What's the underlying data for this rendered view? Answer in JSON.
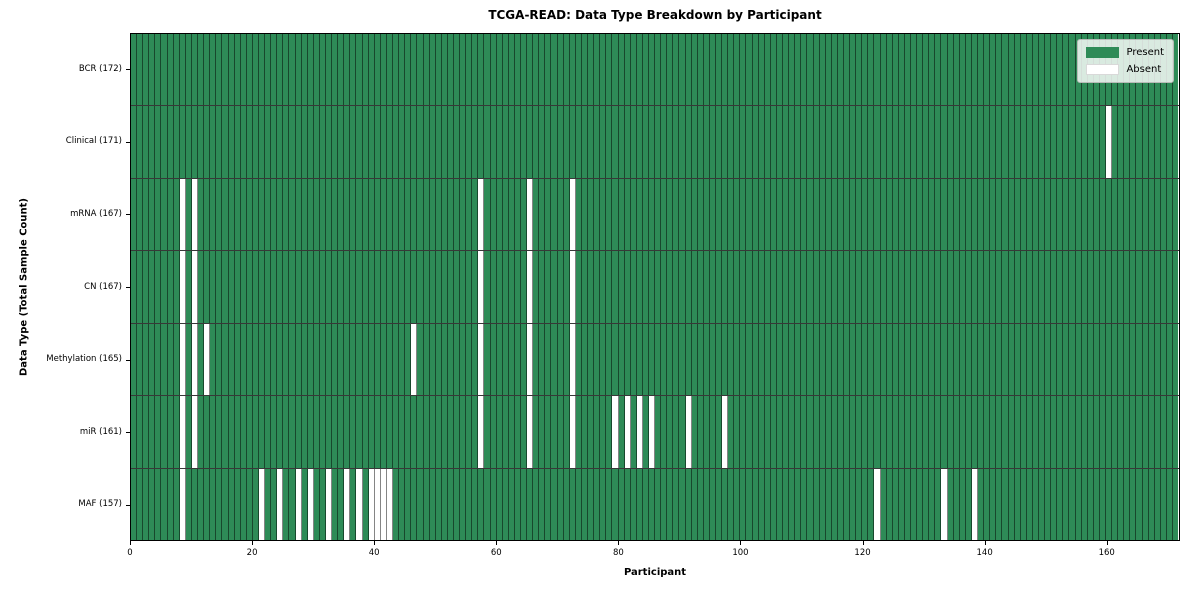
{
  "chart_data": {
    "type": "heatmap",
    "title": "TCGA-READ: Data Type Breakdown by Participant",
    "xlabel": "Participant",
    "ylabel": "Data Type (Total Sample Count)",
    "x_range": [
      0,
      172
    ],
    "n_participants": 172,
    "x_ticks": [
      0,
      20,
      40,
      60,
      80,
      100,
      120,
      140,
      160
    ],
    "grid": false,
    "legend_position": "upper right",
    "colors": {
      "present": "#2e8b57",
      "absent": "#ffffff"
    },
    "rows": [
      {
        "label": "BCR (172)",
        "data_type": "BCR",
        "present_count": 172,
        "absent_participants": []
      },
      {
        "label": "Clinical (171)",
        "data_type": "Clinical",
        "present_count": 171,
        "absent_participants": [
          160
        ]
      },
      {
        "label": "mRNA (167)",
        "data_type": "mRNA",
        "present_count": 167,
        "absent_participants": [
          8,
          10,
          57,
          65,
          72
        ]
      },
      {
        "label": "CN (167)",
        "data_type": "CN",
        "present_count": 167,
        "absent_participants": [
          8,
          10,
          57,
          65,
          72
        ]
      },
      {
        "label": "Methylation (165)",
        "data_type": "Methylation",
        "present_count": 165,
        "absent_participants": [
          8,
          10,
          12,
          46,
          57,
          65,
          72
        ]
      },
      {
        "label": "miR (161)",
        "data_type": "miR",
        "present_count": 161,
        "absent_participants": [
          8,
          10,
          57,
          65,
          72,
          79,
          81,
          83,
          85,
          91,
          97
        ]
      },
      {
        "label": "MAF (157)",
        "data_type": "MAF",
        "present_count": 157,
        "absent_participants": [
          8,
          21,
          24,
          27,
          29,
          32,
          35,
          37,
          39,
          40,
          41,
          42,
          122,
          133,
          138
        ]
      }
    ],
    "legend": [
      {
        "label": "Present",
        "color": "#2e8b57"
      },
      {
        "label": "Absent",
        "color": "#ffffff"
      }
    ]
  }
}
